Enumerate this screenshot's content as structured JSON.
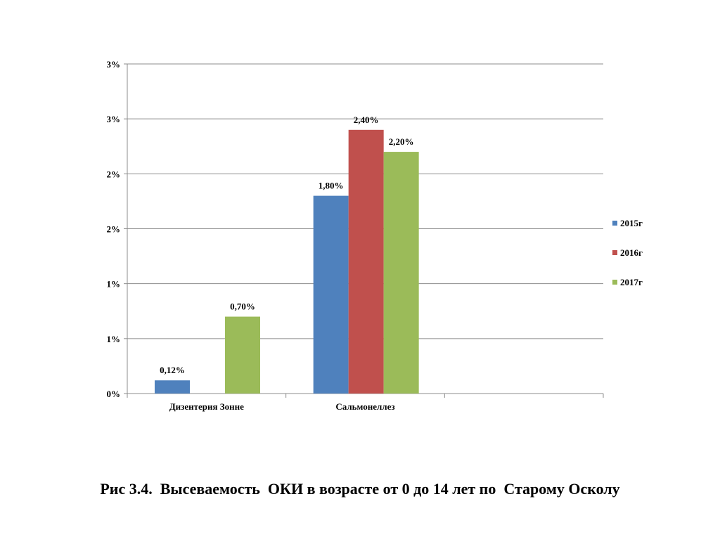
{
  "caption": "Рис 3.4.  Высеваемость  ОКИ в возрасте от 0 до 14 лет по  Старому Осколу",
  "chart_data": {
    "type": "bar",
    "categories": [
      "Дизентерия Зонне",
      "Сальмонеллез",
      ""
    ],
    "series": [
      {
        "name": "2015г",
        "color": "#4F81BD",
        "values": [
          0.12,
          1.8,
          null
        ],
        "labels": [
          "0,12%",
          "1,80%",
          ""
        ]
      },
      {
        "name": "2016г",
        "color": "#C0504D",
        "values": [
          null,
          2.4,
          null
        ],
        "labels": [
          "",
          "2,40%",
          ""
        ]
      },
      {
        "name": "2017г",
        "color": "#9BBB59",
        "values": [
          0.7,
          2.2,
          null
        ],
        "labels": [
          "0,70%",
          "2,20%",
          ""
        ]
      }
    ],
    "ylim": [
      0,
      3
    ],
    "yticks": [
      0,
      0.5,
      1,
      1.5,
      2,
      2.5,
      3
    ],
    "ytick_labels": [
      "0%",
      "1%",
      "1%",
      "2%",
      "2%",
      "3%",
      "3%"
    ],
    "grid": true,
    "legend_position": "right",
    "title": "",
    "xlabel": "",
    "ylabel": ""
  }
}
